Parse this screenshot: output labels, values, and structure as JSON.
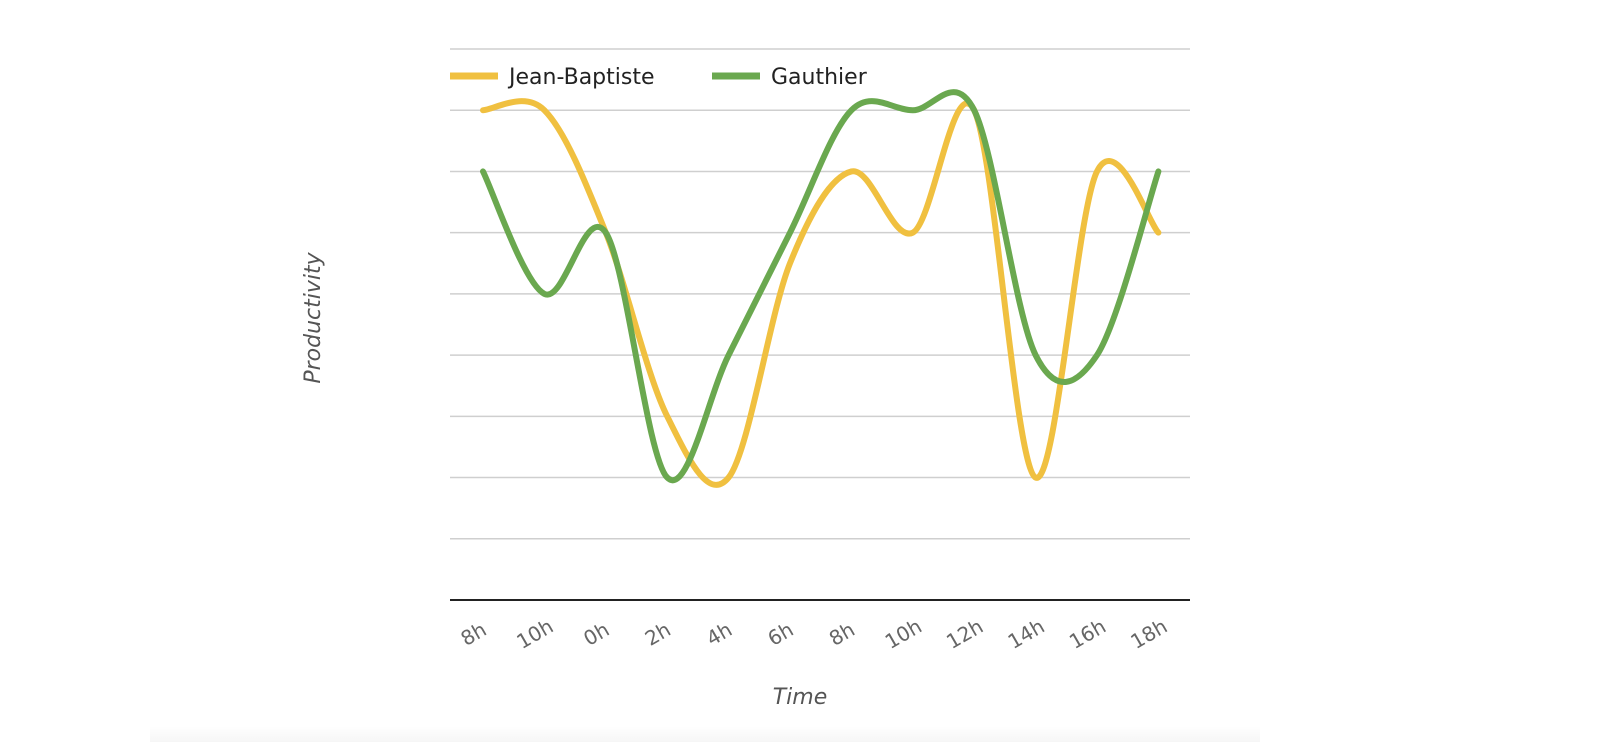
{
  "chart_data": {
    "type": "line",
    "xlabel": "Time",
    "ylabel": "Productivity",
    "categories": [
      "8h",
      "10h",
      "0h",
      "2h",
      "4h",
      "6h",
      "8h",
      "10h",
      "12h",
      "14h",
      "16h",
      "18h"
    ],
    "ylim": [
      0,
      9
    ],
    "grid": true,
    "smooth": true,
    "legend": "top-left",
    "series": [
      {
        "name": "Jean-Baptiste",
        "color": "#f0c040",
        "values": [
          8,
          8,
          6,
          3,
          2,
          5.5,
          7,
          6,
          8,
          2,
          7,
          6
        ]
      },
      {
        "name": "Gauthier",
        "color": "#6aa84f",
        "values": [
          7,
          5,
          6,
          2,
          4,
          6,
          8,
          8,
          8,
          4,
          4,
          7
        ]
      }
    ]
  }
}
